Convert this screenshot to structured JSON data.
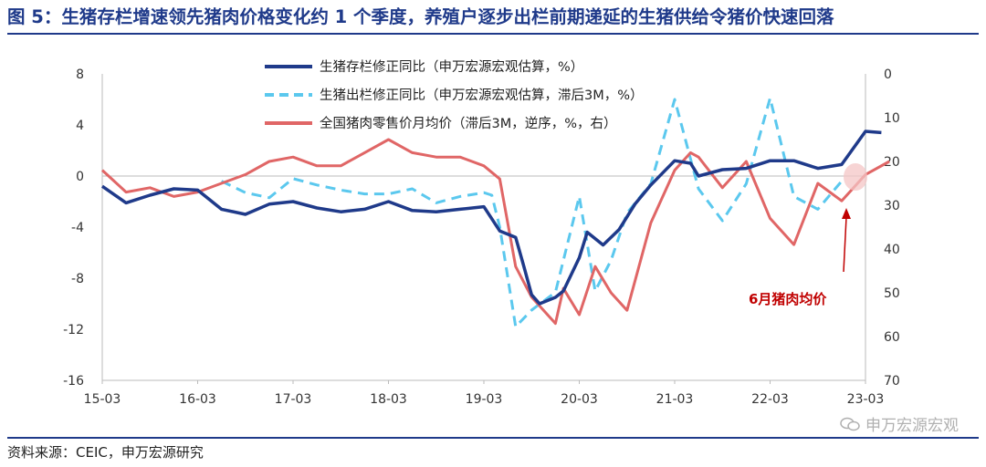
{
  "header": {
    "title": "图 5：生猪存栏增速领先猪肉价格变化约 1 个季度，养殖户逐步出栏前期递延的生猪供给令猪价快速回落"
  },
  "footer": {
    "source": "资料来源：CEIC，申万宏源研究",
    "watermark": "申万宏源宏观"
  },
  "colors": {
    "title": "#1f3a8a",
    "series_stock": "#1f3a8a",
    "series_slaughter": "#5bc8ee",
    "series_price": "#e06666",
    "annotation": "#c00000"
  },
  "chart_data": {
    "type": "line",
    "x_tick_labels": [
      "15-03",
      "16-03",
      "17-03",
      "18-03",
      "19-03",
      "20-03",
      "21-03",
      "22-03",
      "23-03"
    ],
    "y_left": {
      "lim": [
        -16,
        8
      ],
      "ticks": [
        "8",
        "4",
        "0",
        "-4",
        "-8",
        "-12",
        "-16"
      ]
    },
    "y_right": {
      "lim": [
        0,
        70
      ],
      "inverted": true,
      "ticks": [
        "0",
        "10",
        "20",
        "30",
        "40",
        "50",
        "60",
        "70"
      ]
    },
    "legend_position": "top-center",
    "annotation": "6月猪肉均价",
    "series": [
      {
        "name": "生猪存栏修正同比（申万宏源宏观估算，%）",
        "axis": "left",
        "style": "solid",
        "x": [
          "2015-03",
          "2015-06",
          "2015-09",
          "2015-12",
          "2016-03",
          "2016-06",
          "2016-09",
          "2016-12",
          "2017-03",
          "2017-06",
          "2017-09",
          "2017-12",
          "2018-03",
          "2018-06",
          "2018-09",
          "2018-12",
          "2019-03",
          "2019-05",
          "2019-07",
          "2019-08",
          "2019-09",
          "2019-10",
          "2019-12",
          "2020-01",
          "2020-03",
          "2020-04",
          "2020-06",
          "2020-08",
          "2020-10",
          "2020-12",
          "2021-03",
          "2021-05",
          "2021-06",
          "2021-09",
          "2021-12",
          "2022-03",
          "2022-06",
          "2022-09",
          "2022-12",
          "2023-03",
          "2023-05",
          "2023-06"
        ],
        "values": [
          -0.8,
          -2.1,
          -1.5,
          -1.0,
          -1.1,
          -2.6,
          -3.0,
          -2.2,
          -2.0,
          -2.5,
          -2.8,
          -2.6,
          -2.0,
          -2.7,
          -2.8,
          -2.6,
          -2.4,
          -4.3,
          -4.8,
          -7.0,
          -9.3,
          -10.0,
          -9.5,
          -9.0,
          -6.4,
          -4.4,
          -5.4,
          -4.2,
          -2.2,
          -0.7,
          1.2,
          1.0,
          0.0,
          0.5,
          0.6,
          1.2,
          1.2,
          0.6,
          0.9,
          3.5,
          3.4,
          null
        ]
      },
      {
        "name": "生猪出栏修正同比（申万宏源宏观估算，滞后3M，%）",
        "axis": "left",
        "style": "dashed",
        "x": [
          "2016-06",
          "2016-09",
          "2016-12",
          "2017-03",
          "2017-06",
          "2017-09",
          "2017-12",
          "2018-03",
          "2018-06",
          "2018-09",
          "2018-12",
          "2019-03",
          "2019-04",
          "2019-05",
          "2019-07",
          "2019-09",
          "2019-12",
          "2020-01",
          "2020-03",
          "2020-05",
          "2020-07",
          "2020-09",
          "2020-12",
          "2021-03",
          "2021-06",
          "2021-09",
          "2021-12",
          "2022-03",
          "2022-06",
          "2022-09",
          "2022-12"
        ],
        "values": [
          -0.4,
          -1.3,
          -1.7,
          -0.2,
          -0.7,
          -1.1,
          -1.4,
          -1.4,
          -1.0,
          -2.1,
          -1.6,
          -1.3,
          -1.5,
          -4.0,
          -11.8,
          -10.5,
          -9.1,
          -6.6,
          -1.6,
          -9.0,
          -6.6,
          -2.9,
          -0.6,
          6.0,
          -1.0,
          -3.5,
          -0.6,
          6.1,
          -1.6,
          -2.6,
          -0.4
        ]
      },
      {
        "name": "全国猪肉零售价月均价（滞后3M，逆序，%，右）",
        "axis": "right",
        "style": "solid",
        "x": [
          "2015-03",
          "2015-06",
          "2015-09",
          "2015-12",
          "2016-03",
          "2016-06",
          "2016-09",
          "2016-12",
          "2017-03",
          "2017-06",
          "2017-09",
          "2017-12",
          "2018-03",
          "2018-06",
          "2018-09",
          "2018-12",
          "2019-03",
          "2019-05",
          "2019-07",
          "2019-09",
          "2019-12",
          "2020-01",
          "2020-03",
          "2020-05",
          "2020-07",
          "2020-09",
          "2020-12",
          "2021-03",
          "2021-05",
          "2021-06",
          "2021-09",
          "2021-12",
          "2022-03",
          "2022-06",
          "2022-09",
          "2022-12",
          "2023-03",
          "2023-06"
        ],
        "values": [
          22,
          27,
          26,
          28,
          27,
          25,
          23,
          20,
          19,
          21,
          21,
          18,
          15,
          18,
          19,
          19,
          21,
          24,
          44,
          51,
          57,
          49,
          55,
          44,
          50,
          54,
          34,
          22,
          18,
          19,
          26,
          20,
          33,
          39,
          25,
          29,
          23,
          20
        ]
      }
    ]
  }
}
